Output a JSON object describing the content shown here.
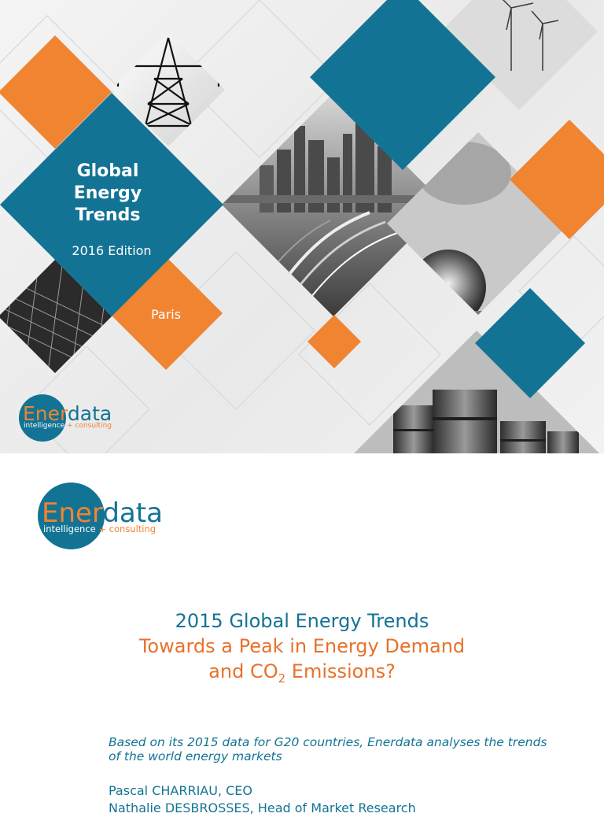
{
  "cover": {
    "title_lines": [
      "Global",
      "Energy",
      "Trends"
    ],
    "edition": "2016 Edition",
    "city": "Paris",
    "colors": {
      "teal": "#137394",
      "orange": "#f08431",
      "gray_bg": "#ececec"
    }
  },
  "logo": {
    "name_part1": "Ener",
    "name_part2": "data",
    "tagline_part1": "intelligence",
    "tagline_part2": "+ consulting"
  },
  "report": {
    "title_line1": "2015 Global Energy Trends",
    "title_line2": "Towards a Peak in Energy Demand",
    "title_line3_pre": "and CO",
    "title_line3_sub": "2",
    "title_line3_post": " Emissions?",
    "summary": "Based on its 2015 data for G20 countries, Enerdata analyses the trends of the world energy markets",
    "authors": [
      "Pascal CHARRIAU, CEO",
      "Nathalie DESBROSSES, Head of Market Research"
    ]
  }
}
